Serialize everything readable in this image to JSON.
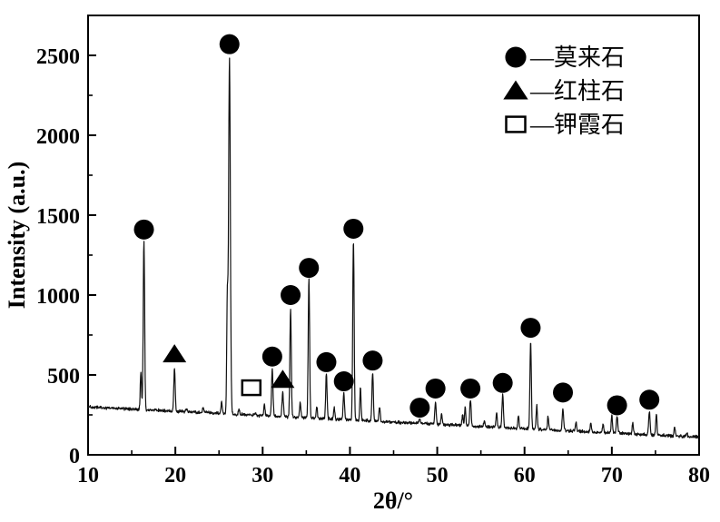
{
  "chart_data": {
    "type": "line",
    "subtype": "xrd-pattern",
    "xlabel": "2θ/°",
    "ylabel": "Intensity (a.u.)",
    "xlim": [
      10,
      80
    ],
    "ylim": [
      0,
      2750
    ],
    "x_major_ticks": [
      10,
      20,
      30,
      40,
      50,
      60,
      70,
      80
    ],
    "x_minor_ticks": [
      15,
      25,
      35,
      45,
      55,
      65,
      75
    ],
    "y_major_ticks": [
      0,
      500,
      1000,
      1500,
      2000,
      2500
    ],
    "y_minor_ticks": [
      250,
      750,
      1250,
      1750,
      2250
    ],
    "grid": false,
    "legend_position": "upper-right-inside",
    "legend": [
      {
        "phase": "mullite",
        "symbol": "filled-circle",
        "label": "—莫来石"
      },
      {
        "phase": "andalusite",
        "symbol": "filled-triangle",
        "label": "—红柱石"
      },
      {
        "phase": "kaliophilite",
        "symbol": "open-square",
        "label": "—钾霞石"
      }
    ],
    "baseline": {
      "start_intensity": 300,
      "end_intensity": 110,
      "noise_amplitude": 12
    },
    "marked_peaks": [
      {
        "two_theta": 16.4,
        "intensity": 1350,
        "marker_intensity": 1410,
        "phase": "mullite"
      },
      {
        "two_theta": 26.2,
        "intensity": 2480,
        "marker_intensity": 2570,
        "phase": "mullite",
        "width": 0.1
      },
      {
        "two_theta": 31.1,
        "intensity": 540,
        "marker_intensity": 615,
        "phase": "mullite"
      },
      {
        "two_theta": 33.2,
        "intensity": 915,
        "marker_intensity": 1000,
        "phase": "mullite"
      },
      {
        "two_theta": 35.3,
        "intensity": 1110,
        "marker_intensity": 1170,
        "phase": "mullite"
      },
      {
        "two_theta": 37.3,
        "intensity": 505,
        "marker_intensity": 580,
        "phase": "mullite"
      },
      {
        "two_theta": 39.3,
        "intensity": 390,
        "marker_intensity": 460,
        "phase": "mullite"
      },
      {
        "two_theta": 40.4,
        "intensity": 1340,
        "marker_intensity": 1415,
        "phase": "mullite"
      },
      {
        "two_theta": 42.6,
        "intensity": 515,
        "marker_intensity": 590,
        "phase": "mullite"
      },
      {
        "two_theta": 48.0,
        "intensity": 222,
        "marker_intensity": 295,
        "phase": "mullite"
      },
      {
        "two_theta": 49.8,
        "intensity": 330,
        "marker_intensity": 415,
        "phase": "mullite"
      },
      {
        "two_theta": 53.8,
        "intensity": 345,
        "marker_intensity": 415,
        "phase": "mullite"
      },
      {
        "two_theta": 57.5,
        "intensity": 385,
        "marker_intensity": 450,
        "phase": "mullite"
      },
      {
        "two_theta": 60.7,
        "intensity": 715,
        "marker_intensity": 795,
        "phase": "mullite"
      },
      {
        "two_theta": 64.4,
        "intensity": 290,
        "marker_intensity": 390,
        "phase": "mullite"
      },
      {
        "two_theta": 70.6,
        "intensity": 245,
        "marker_intensity": 310,
        "phase": "mullite"
      },
      {
        "two_theta": 74.3,
        "intensity": 270,
        "marker_intensity": 345,
        "phase": "mullite"
      },
      {
        "two_theta": 19.9,
        "intensity": 540,
        "marker_intensity": 630,
        "phase": "andalusite"
      },
      {
        "two_theta": 32.3,
        "intensity": 385,
        "marker_intensity": 470,
        "phase": "andalusite"
      },
      {
        "two_theta": 29.2,
        "intensity": 260,
        "marker_intensity": 420,
        "marker_two_theta": 28.7,
        "phase": "kaliophilite"
      }
    ],
    "minor_peaks": [
      {
        "two_theta": 16.05,
        "intensity": 520
      },
      {
        "two_theta": 21.3,
        "intensity": 290
      },
      {
        "two_theta": 23.2,
        "intensity": 295
      },
      {
        "two_theta": 25.3,
        "intensity": 330
      },
      {
        "two_theta": 25.95,
        "intensity": 940
      },
      {
        "two_theta": 27.3,
        "intensity": 285
      },
      {
        "two_theta": 30.2,
        "intensity": 320
      },
      {
        "two_theta": 34.3,
        "intensity": 330
      },
      {
        "two_theta": 36.2,
        "intensity": 300
      },
      {
        "two_theta": 38.2,
        "intensity": 290
      },
      {
        "two_theta": 41.2,
        "intensity": 420
      },
      {
        "two_theta": 43.4,
        "intensity": 300
      },
      {
        "two_theta": 45.1,
        "intensity": 200
      },
      {
        "two_theta": 46.3,
        "intensity": 190
      },
      {
        "two_theta": 50.5,
        "intensity": 260
      },
      {
        "two_theta": 52.9,
        "intensity": 250
      },
      {
        "two_theta": 53.2,
        "intensity": 300
      },
      {
        "two_theta": 55.4,
        "intensity": 210
      },
      {
        "two_theta": 56.8,
        "intensity": 270
      },
      {
        "two_theta": 59.3,
        "intensity": 250
      },
      {
        "two_theta": 61.4,
        "intensity": 310
      },
      {
        "two_theta": 62.7,
        "intensity": 240
      },
      {
        "two_theta": 65.9,
        "intensity": 210
      },
      {
        "two_theta": 67.6,
        "intensity": 200
      },
      {
        "two_theta": 69.0,
        "intensity": 190
      },
      {
        "two_theta": 70.0,
        "intensity": 250
      },
      {
        "two_theta": 72.4,
        "intensity": 200
      },
      {
        "two_theta": 75.1,
        "intensity": 255
      },
      {
        "two_theta": 77.2,
        "intensity": 170
      },
      {
        "two_theta": 78.6,
        "intensity": 140
      }
    ]
  },
  "colors": {
    "trace": "#111111",
    "marker": "#000000",
    "axis": "#000000",
    "background": "#ffffff"
  }
}
